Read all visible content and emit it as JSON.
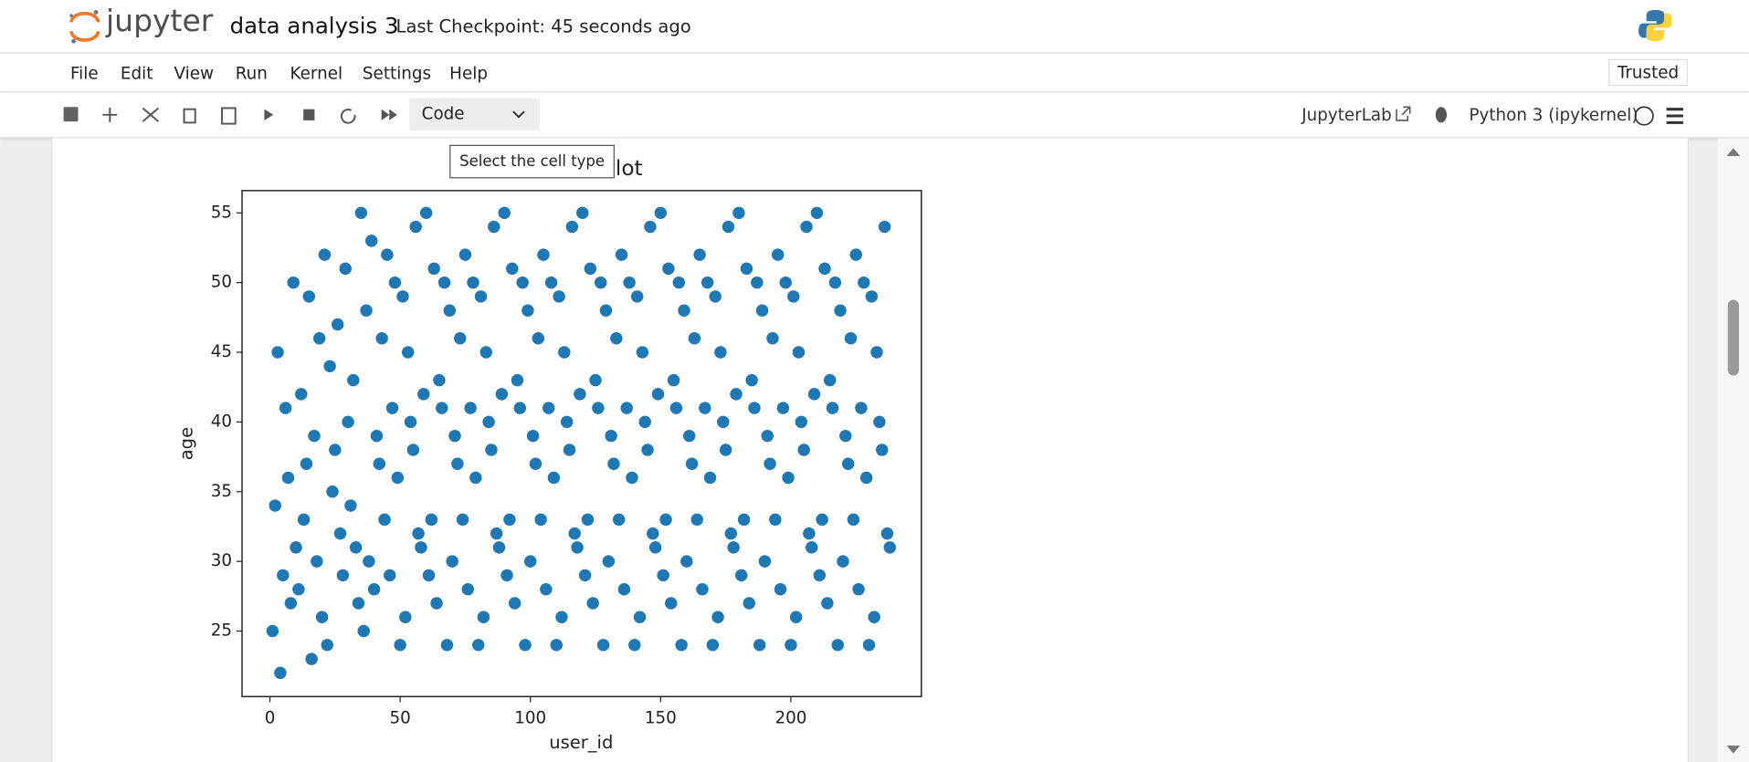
{
  "header": {
    "logo": "jupyter",
    "notebook_name": "data analysis 3",
    "checkpoint": "Last Checkpoint: 45 seconds ago"
  },
  "menu": [
    "File",
    "Edit",
    "View",
    "Run",
    "Kernel",
    "Settings",
    "Help"
  ],
  "trusted": "Trusted",
  "toolbar": {
    "cell_type": "Code",
    "tooltip": "Select the cell type",
    "jupyterlab": "JupyterLab",
    "kernel": "Python 3 (ipykernel)"
  },
  "chart_data": {
    "type": "scatter",
    "title": "Scatter Plot",
    "x_label": "user_id",
    "y_label": "age",
    "color": "#1f77b4",
    "x": [
      1,
      2,
      3,
      4,
      5,
      6,
      7,
      8,
      9,
      10,
      11,
      12,
      13,
      14,
      15,
      16,
      17,
      18,
      19,
      20,
      21,
      22,
      23,
      24,
      25,
      26,
      27,
      28,
      29,
      30,
      31,
      32,
      33,
      34,
      35,
      36,
      37,
      38,
      39,
      40,
      41,
      42,
      43,
      44,
      45,
      46,
      47,
      48,
      49,
      50,
      51,
      52,
      53,
      54,
      55,
      56,
      57,
      58,
      59,
      60,
      61,
      62,
      63,
      64,
      65,
      66,
      67,
      68,
      69,
      70,
      71,
      72,
      73,
      74,
      75,
      76,
      77,
      78,
      79,
      80,
      81,
      82,
      83,
      84,
      85,
      86,
      87,
      88,
      89,
      90,
      91,
      92,
      93,
      94,
      95,
      96,
      97,
      98,
      99,
      100,
      101,
      102,
      103,
      104,
      105,
      106,
      107,
      108,
      109,
      110,
      111,
      112,
      113,
      114,
      115,
      116,
      117,
      118,
      119,
      120,
      121,
      122,
      123,
      124,
      125,
      126,
      127,
      128,
      129,
      130,
      131,
      132,
      133,
      134,
      135,
      136,
      137,
      138,
      139,
      140,
      141,
      142,
      143,
      144,
      145,
      146,
      147,
      148,
      149,
      150,
      151,
      152,
      153,
      154,
      155,
      156,
      157,
      158,
      159,
      160,
      161,
      162,
      163,
      164,
      165,
      166,
      167,
      168,
      169,
      170,
      171,
      172,
      173,
      174,
      175,
      176,
      177,
      178,
      179,
      180,
      181,
      182,
      183,
      184,
      185,
      186,
      187,
      188,
      189,
      190,
      191,
      192,
      193,
      194,
      195,
      196,
      197,
      198,
      199,
      200,
      201,
      202,
      203,
      204,
      205,
      206,
      207,
      208,
      209,
      210,
      211,
      212,
      213,
      214,
      215,
      216,
      217,
      218,
      219,
      220,
      221,
      222,
      223,
      224,
      225,
      226,
      227,
      228,
      229,
      230,
      231,
      232,
      233,
      234,
      235,
      236,
      237,
      238
    ],
    "y": [
      25,
      34,
      45,
      22,
      29,
      41,
      36,
      27,
      50,
      31,
      28,
      42,
      33,
      37,
      49,
      23,
      39,
      30,
      46,
      26,
      52,
      24,
      44,
      35,
      38,
      47,
      32,
      29,
      51,
      40,
      34,
      43,
      31,
      27,
      55,
      25,
      48,
      30,
      53,
      28,
      39,
      37,
      46,
      33,
      52,
      29,
      41,
      50,
      36,
      24,
      49,
      26,
      45,
      40,
      38,
      54,
      32,
      31,
      42,
      55,
      29,
      33,
      51,
      27,
      43,
      41,
      50,
      24,
      48,
      30,
      39,
      37,
      46,
      33,
      52,
      28,
      41,
      50,
      36,
      24,
      49,
      26,
      45,
      40,
      38,
      54,
      32,
      31,
      42,
      55,
      29,
      33,
      51,
      27,
      43,
      41,
      50,
      24,
      48,
      30,
      39,
      37,
      46,
      33,
      52,
      28,
      41,
      50,
      36,
      24,
      49,
      26,
      45,
      40,
      38,
      54,
      32,
      31,
      42,
      55,
      29,
      33,
      51,
      27,
      43,
      41,
      50,
      24,
      48,
      30,
      39,
      37,
      46,
      33,
      52,
      28,
      41,
      50,
      36,
      24,
      49,
      26,
      45,
      40,
      38,
      54,
      32,
      31,
      42,
      55,
      29,
      33,
      51,
      27,
      43,
      41,
      50,
      24,
      48,
      30,
      39,
      37,
      46,
      33,
      52,
      28,
      41,
      50,
      36,
      24,
      49,
      26,
      45,
      40,
      38,
      54,
      32,
      31,
      42,
      55,
      29,
      33,
      51,
      27,
      43,
      41,
      50,
      24,
      48,
      30,
      39,
      37,
      46,
      33,
      52,
      28,
      41,
      50,
      36,
      24,
      49,
      26,
      45,
      40,
      38,
      54,
      32,
      31,
      42,
      55,
      29,
      33,
      51,
      27,
      43,
      41,
      50,
      24,
      48,
      30,
      39,
      37,
      46,
      33,
      52,
      28,
      41,
      50,
      36,
      24,
      49,
      26,
      45,
      40,
      38,
      54,
      32,
      31
    ],
    "xlim": [
      -10.7,
      250.1
    ],
    "ylim": [
      20.3,
      56.6
    ],
    "xticks": [
      0,
      50,
      100,
      150,
      200
    ],
    "yticks": [
      25,
      30,
      35,
      40,
      45,
      50,
      55
    ]
  }
}
